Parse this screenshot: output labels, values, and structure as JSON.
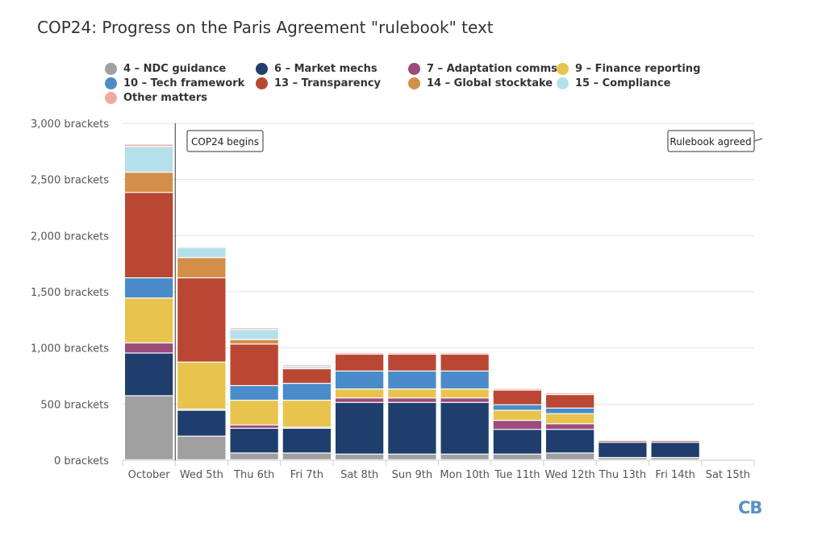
{
  "title": "COP24: Progress on the Paris Agreement \"rulebook\" text",
  "logo": "CB",
  "chart_data": {
    "type": "bar",
    "stacked": true,
    "title": "COP24: Progress on the Paris Agreement \"rulebook\" text",
    "categories": [
      "October",
      "Wed 5th",
      "Thu 6th",
      "Fri 7th",
      "Sat 8th",
      "Sun 9th",
      "Mon 10th",
      "Tue 11th",
      "Wed 12th",
      "Thu 13th",
      "Fri 14th",
      "Sat 15th"
    ],
    "ylim": [
      0,
      3000
    ],
    "yticks": [
      0,
      500,
      1000,
      1500,
      2000,
      2500,
      3000
    ],
    "ytick_labels": [
      "0 brackets",
      "500 brackets",
      "1,000 brackets",
      "1,500 brackets",
      "2,000 brackets",
      "2,500 brackets",
      "3,000 brackets"
    ],
    "grid": true,
    "legend_position": "top",
    "series": [
      {
        "name": "4 – NDC guidance",
        "color": "#a0a0a0",
        "values": [
          570,
          210,
          60,
          60,
          50,
          50,
          50,
          50,
          60,
          20,
          20,
          0
        ]
      },
      {
        "name": "6 – Market mechs",
        "color": "#1f3e6e",
        "values": [
          380,
          230,
          220,
          220,
          460,
          460,
          460,
          220,
          210,
          135,
          135,
          0
        ]
      },
      {
        "name": "7 – Adaptation comms",
        "color": "#9c4b7d",
        "values": [
          90,
          10,
          30,
          10,
          40,
          40,
          40,
          80,
          50,
          0,
          0,
          0
        ]
      },
      {
        "name": "9 – Finance reporting",
        "color": "#e8c44f",
        "values": [
          400,
          420,
          220,
          240,
          80,
          80,
          80,
          90,
          90,
          0,
          0,
          0
        ]
      },
      {
        "name": "10 – Tech framework",
        "color": "#4a8cc9",
        "values": [
          180,
          0,
          130,
          150,
          160,
          160,
          160,
          50,
          50,
          0,
          0,
          0
        ]
      },
      {
        "name": "13 – Transparency",
        "color": "#b94733",
        "values": [
          760,
          750,
          370,
          130,
          150,
          150,
          150,
          130,
          120,
          15,
          15,
          0
        ]
      },
      {
        "name": "14 – Global stocktake",
        "color": "#d38f4a",
        "values": [
          180,
          180,
          40,
          0,
          0,
          0,
          0,
          0,
          0,
          0,
          0,
          0
        ]
      },
      {
        "name": "15 – Compliance",
        "color": "#b5e0ea",
        "values": [
          230,
          90,
          90,
          20,
          0,
          0,
          0,
          0,
          0,
          0,
          0,
          0
        ]
      },
      {
        "name": "Other matters",
        "color": "#f2a9a3",
        "values": [
          20,
          10,
          15,
          15,
          15,
          15,
          15,
          15,
          15,
          5,
          5,
          0
        ]
      }
    ],
    "annotations": [
      {
        "label": "COP24 begins",
        "after_category": "October"
      },
      {
        "label": "Rulebook agreed",
        "after_category": "Sat 15th"
      }
    ]
  }
}
